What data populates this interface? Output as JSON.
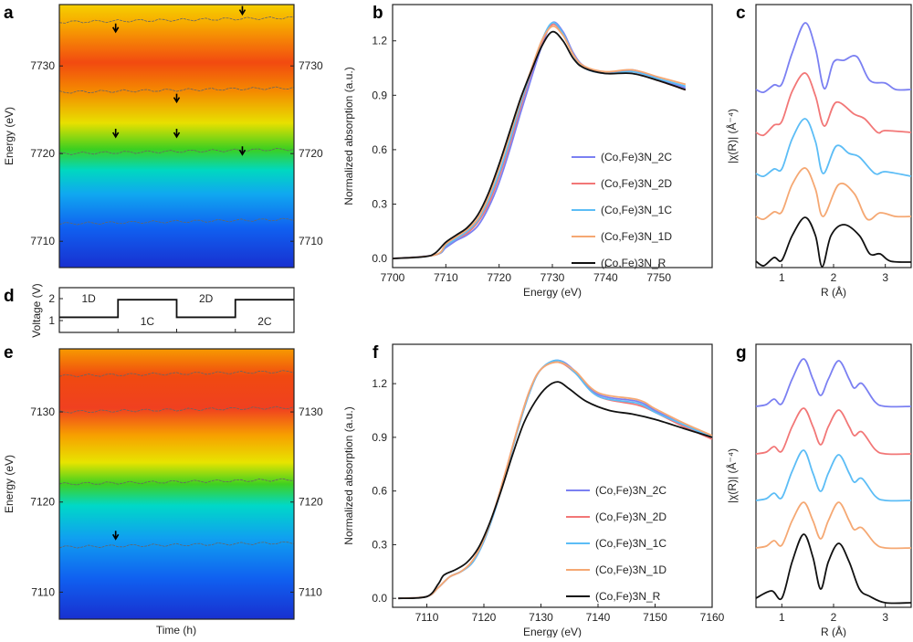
{
  "panel_labels": [
    "a",
    "b",
    "c",
    "d",
    "e",
    "f",
    "g"
  ],
  "colors": {
    "2C": "#7b80f2",
    "2D": "#f27777",
    "1C": "#5cbdf6",
    "1D": "#f5a873",
    "R": "#111111"
  },
  "chart_data": [
    {
      "id": "a",
      "type": "heatmap",
      "ylabel": "Energy (eV)",
      "yticks": [
        "7710",
        "7720",
        "7730"
      ],
      "ylim": [
        7707,
        7737
      ],
      "colormap": "jet",
      "arrows_energy": [
        7734,
        7736,
        7726,
        7722,
        7720,
        7722
      ]
    },
    {
      "id": "b",
      "type": "line",
      "xlabel": "Energy (eV)",
      "ylabel": "Normalized absorption (a.u.)",
      "xlim": [
        7700,
        7760
      ],
      "ylim": [
        -0.05,
        1.4
      ],
      "xticks": [
        "7700",
        "7710",
        "7720",
        "7730",
        "7740",
        "7750"
      ],
      "yticks": [
        "0.0",
        "0.3",
        "0.6",
        "0.9",
        "1.2"
      ],
      "legend": "center-right",
      "series": [
        {
          "name": "(Co,Fe)3N_2C",
          "key": "2C",
          "x": [
            7700,
            7708,
            7710,
            7712,
            7714,
            7716,
            7718,
            7720,
            7722,
            7724,
            7726,
            7728,
            7730,
            7732,
            7734,
            7736,
            7740,
            7745,
            7750,
            7755
          ],
          "y": [
            0,
            0.02,
            0.06,
            0.1,
            0.13,
            0.18,
            0.28,
            0.42,
            0.6,
            0.8,
            0.99,
            1.17,
            1.3,
            1.25,
            1.13,
            1.06,
            1.02,
            1.04,
            0.99,
            0.94
          ]
        },
        {
          "name": "(Co,Fe)3N_2D",
          "key": "2D",
          "x": [
            7700,
            7708,
            7710,
            7712,
            7714,
            7716,
            7718,
            7720,
            7722,
            7724,
            7726,
            7728,
            7730,
            7732,
            7734,
            7736,
            7740,
            7745,
            7750,
            7755
          ],
          "y": [
            0,
            0.02,
            0.07,
            0.11,
            0.14,
            0.2,
            0.3,
            0.45,
            0.63,
            0.83,
            1.02,
            1.19,
            1.29,
            1.24,
            1.12,
            1.05,
            1.02,
            1.03,
            0.98,
            0.93
          ]
        },
        {
          "name": "(Co,Fe)3N_1C",
          "key": "1C",
          "x": [
            7700,
            7708,
            7710,
            7712,
            7714,
            7716,
            7718,
            7720,
            7722,
            7724,
            7726,
            7728,
            7730,
            7732,
            7734,
            7736,
            7740,
            7745,
            7750,
            7755
          ],
          "y": [
            0,
            0.02,
            0.07,
            0.11,
            0.15,
            0.21,
            0.32,
            0.47,
            0.65,
            0.85,
            1.03,
            1.2,
            1.3,
            1.24,
            1.12,
            1.05,
            1.02,
            1.03,
            0.99,
            0.95
          ]
        },
        {
          "name": "(Co,Fe)3N_1D",
          "key": "1D",
          "x": [
            7700,
            7708,
            7710,
            7712,
            7714,
            7716,
            7718,
            7720,
            7722,
            7724,
            7726,
            7728,
            7730,
            7732,
            7734,
            7736,
            7740,
            7745,
            7750,
            7755
          ],
          "y": [
            0,
            0.02,
            0.08,
            0.12,
            0.16,
            0.22,
            0.34,
            0.5,
            0.68,
            0.87,
            1.04,
            1.2,
            1.28,
            1.23,
            1.12,
            1.06,
            1.03,
            1.04,
            1.0,
            0.96
          ]
        },
        {
          "name": "(Co,Fe)3N_R",
          "key": "R",
          "x": [
            7700,
            7706,
            7708,
            7710,
            7712,
            7714,
            7716,
            7718,
            7720,
            7722,
            7724,
            7726,
            7728,
            7730,
            7732,
            7734,
            7736,
            7740,
            7745,
            7750,
            7755
          ],
          "y": [
            0,
            0.01,
            0.03,
            0.09,
            0.13,
            0.17,
            0.24,
            0.36,
            0.52,
            0.7,
            0.88,
            1.03,
            1.17,
            1.25,
            1.2,
            1.1,
            1.05,
            1.02,
            1.02,
            0.98,
            0.93
          ]
        }
      ]
    },
    {
      "id": "c",
      "type": "line",
      "xlabel": "R (Å)",
      "ylabel": "|χ(R)| (Å⁻⁴)",
      "xlim": [
        0.5,
        3.5
      ],
      "ylim": [
        0,
        2.88
      ],
      "xticks": [
        "1",
        "2",
        "3"
      ],
      "series": [
        {
          "key": "2C",
          "offset": 1.95,
          "x": [
            0.5,
            0.65,
            0.85,
            1.0,
            1.2,
            1.45,
            1.65,
            1.82,
            2.0,
            2.2,
            2.45,
            2.7,
            3.0,
            3.2,
            3.5
          ],
          "y": [
            0,
            -0.03,
            0.05,
            0.06,
            0.4,
            0.73,
            0.45,
            0.01,
            0.3,
            0.32,
            0.36,
            0.1,
            0.07,
            0,
            0
          ]
        },
        {
          "key": "2D",
          "offset": 1.48,
          "x": [
            0.5,
            0.65,
            0.85,
            1.0,
            1.2,
            1.45,
            1.65,
            1.82,
            2.05,
            2.4,
            2.6,
            2.85,
            3.0,
            3.5
          ],
          "y": [
            0,
            -0.03,
            0.08,
            0.12,
            0.45,
            0.65,
            0.4,
            0.07,
            0.33,
            0.2,
            0.15,
            0,
            0.02,
            0
          ]
        },
        {
          "key": "1C",
          "offset": 1.03,
          "x": [
            0.5,
            0.65,
            0.85,
            1.0,
            1.2,
            1.45,
            1.65,
            1.8,
            2.05,
            2.3,
            2.5,
            2.8,
            3.0,
            3.5
          ],
          "y": [
            0,
            -0.03,
            0.05,
            0.05,
            0.38,
            0.6,
            0.35,
            0,
            0.3,
            0.22,
            0.18,
            0,
            0.02,
            -0.03
          ]
        },
        {
          "key": "1D",
          "offset": 0.56,
          "x": [
            0.5,
            0.65,
            0.85,
            1.0,
            1.2,
            1.45,
            1.65,
            1.8,
            2.1,
            2.4,
            2.65,
            2.9,
            3.2,
            3.5
          ],
          "y": [
            0,
            -0.03,
            0.05,
            0.05,
            0.35,
            0.53,
            0.3,
            0,
            0.35,
            0.25,
            -0.03,
            0.04,
            0,
            0
          ]
        },
        {
          "key": "R",
          "offset": 0.05,
          "x": [
            0.5,
            0.65,
            0.85,
            1.0,
            1.2,
            1.45,
            1.65,
            1.78,
            1.95,
            2.2,
            2.5,
            2.7,
            2.9,
            3.1,
            3.5
          ],
          "y": [
            0.02,
            -0.03,
            0.06,
            0.03,
            0.3,
            0.5,
            0.3,
            -0.04,
            0.3,
            0.42,
            0.3,
            0.1,
            0.1,
            0.02,
            0.01
          ]
        }
      ]
    },
    {
      "id": "d",
      "type": "line",
      "ylabel": "Voltage (V)",
      "yticks": [
        "1",
        "2"
      ],
      "ylim": [
        0.46,
        2.5
      ],
      "segments": [
        {
          "label": "1D",
          "key": "1D",
          "voltage": 1.15
        },
        {
          "label": "1C",
          "key": "1C",
          "voltage": 1.95
        },
        {
          "label": "2D",
          "key": "2D",
          "voltage": 1.15
        },
        {
          "label": "2C",
          "key": "2C",
          "voltage": 1.95
        }
      ]
    },
    {
      "id": "e",
      "type": "heatmap",
      "xlabel": "Time (h)",
      "ylabel": "Energy (eV)",
      "yticks": [
        "7110",
        "7120",
        "7130"
      ],
      "ylim": [
        7107,
        7137
      ],
      "colormap": "jet",
      "arrows_energy": [
        7116
      ]
    },
    {
      "id": "f",
      "type": "line",
      "xlabel": "Energy (eV)",
      "ylabel": "Normalized absorption (a.u.)",
      "xlim": [
        7104,
        7160
      ],
      "ylim": [
        -0.05,
        1.42
      ],
      "xticks": [
        "7110",
        "7120",
        "7130",
        "7140",
        "7150",
        "7160"
      ],
      "yticks": [
        "0.0",
        "0.3",
        "0.6",
        "0.9",
        "1.2"
      ],
      "legend": "lower-right",
      "series": [
        {
          "name": "(Co,Fe)3N_2C",
          "key": "2C",
          "x": [
            7105,
            7110,
            7112,
            7114,
            7116,
            7118,
            7120,
            7122,
            7124,
            7126,
            7128,
            7130,
            7133,
            7136,
            7140,
            7147,
            7150,
            7155,
            7160
          ],
          "y": [
            0,
            0.01,
            0.06,
            0.12,
            0.15,
            0.2,
            0.32,
            0.5,
            0.72,
            0.95,
            1.15,
            1.28,
            1.33,
            1.27,
            1.14,
            1.1,
            1.05,
            0.97,
            0.9
          ]
        },
        {
          "name": "(Co,Fe)3N_2D",
          "key": "2D",
          "x": [
            7105,
            7110,
            7112,
            7114,
            7116,
            7118,
            7120,
            7122,
            7124,
            7126,
            7128,
            7130,
            7133,
            7136,
            7140,
            7147,
            7150,
            7155,
            7160
          ],
          "y": [
            0,
            0.01,
            0.06,
            0.12,
            0.15,
            0.21,
            0.33,
            0.51,
            0.73,
            0.96,
            1.16,
            1.28,
            1.32,
            1.26,
            1.13,
            1.08,
            1.04,
            0.96,
            0.89
          ]
        },
        {
          "name": "(Co,Fe)3N_1C",
          "key": "1C",
          "x": [
            7105,
            7110,
            7112,
            7114,
            7116,
            7118,
            7120,
            7122,
            7124,
            7126,
            7128,
            7130,
            7133,
            7136,
            7140,
            7147,
            7150,
            7155,
            7160
          ],
          "y": [
            0,
            0.01,
            0.06,
            0.12,
            0.15,
            0.2,
            0.32,
            0.5,
            0.72,
            0.95,
            1.15,
            1.28,
            1.33,
            1.26,
            1.13,
            1.09,
            1.04,
            0.97,
            0.9
          ]
        },
        {
          "name": "(Co,Fe)3N_1D",
          "key": "1D",
          "x": [
            7105,
            7110,
            7112,
            7114,
            7116,
            7118,
            7120,
            7122,
            7124,
            7126,
            7128,
            7130,
            7133,
            7136,
            7140,
            7147,
            7150,
            7155,
            7160
          ],
          "y": [
            0,
            0.01,
            0.06,
            0.12,
            0.15,
            0.21,
            0.33,
            0.51,
            0.73,
            0.96,
            1.16,
            1.28,
            1.32,
            1.27,
            1.15,
            1.11,
            1.06,
            0.98,
            0.91
          ]
        },
        {
          "name": "(Co,Fe)3N_R",
          "key": "R",
          "x": [
            7105,
            7110,
            7112,
            7113,
            7115,
            7117,
            7119,
            7121,
            7123,
            7125,
            7127,
            7129,
            7131,
            7133,
            7135,
            7138,
            7142,
            7146,
            7150,
            7155,
            7160
          ],
          "y": [
            0,
            0.01,
            0.08,
            0.13,
            0.16,
            0.2,
            0.28,
            0.42,
            0.6,
            0.8,
            0.98,
            1.1,
            1.18,
            1.21,
            1.17,
            1.1,
            1.05,
            1.03,
            1.0,
            0.95,
            0.9
          ]
        }
      ]
    },
    {
      "id": "g",
      "type": "line",
      "xlabel": "R (Å)",
      "ylabel": "|χ(R)| (Å⁻⁴)",
      "xlim": [
        0.5,
        3.5
      ],
      "ylim": [
        0,
        2.88
      ],
      "xticks": [
        "1",
        "2",
        "3"
      ],
      "series": [
        {
          "key": "2C",
          "offset": 2.2,
          "x": [
            0.5,
            0.7,
            0.85,
            1.0,
            1.2,
            1.42,
            1.6,
            1.75,
            1.9,
            2.1,
            2.3,
            2.4,
            2.55,
            2.8,
            3.0,
            3.5
          ],
          "y": [
            0,
            0.02,
            0.08,
            0.03,
            0.3,
            0.52,
            0.3,
            0.12,
            0.3,
            0.5,
            0.3,
            0.2,
            0.25,
            0.05,
            0,
            0
          ]
        },
        {
          "key": "2D",
          "offset": 1.68,
          "x": [
            0.5,
            0.7,
            0.85,
            1.0,
            1.2,
            1.42,
            1.6,
            1.75,
            1.9,
            2.1,
            2.3,
            2.4,
            2.55,
            2.8,
            3.0,
            3.5
          ],
          "y": [
            0,
            0.02,
            0.08,
            0.03,
            0.3,
            0.5,
            0.3,
            0.1,
            0.3,
            0.48,
            0.3,
            0.2,
            0.24,
            0.05,
            0,
            0
          ]
        },
        {
          "key": "1C",
          "offset": 1.17,
          "x": [
            0.5,
            0.7,
            0.85,
            1.0,
            1.2,
            1.42,
            1.6,
            1.75,
            1.9,
            2.1,
            2.3,
            2.4,
            2.55,
            2.8,
            3.0,
            3.5
          ],
          "y": [
            0,
            0.02,
            0.08,
            0.03,
            0.32,
            0.55,
            0.3,
            0.1,
            0.3,
            0.5,
            0.3,
            0.2,
            0.24,
            0.05,
            0,
            0
          ]
        },
        {
          "key": "1D",
          "offset": 0.65,
          "x": [
            0.5,
            0.7,
            0.85,
            1.0,
            1.2,
            1.42,
            1.6,
            1.75,
            1.9,
            2.1,
            2.3,
            2.4,
            2.55,
            2.8,
            3.0,
            3.5
          ],
          "y": [
            0,
            0.02,
            0.08,
            0.03,
            0.3,
            0.5,
            0.3,
            0.1,
            0.3,
            0.5,
            0.3,
            0.2,
            0.22,
            0.05,
            0,
            0
          ]
        },
        {
          "key": "R",
          "offset": 0.1,
          "x": [
            0.5,
            0.8,
            1.0,
            1.2,
            1.42,
            1.6,
            1.75,
            1.9,
            2.1,
            2.3,
            2.5,
            2.7,
            3.0,
            3.5
          ],
          "y": [
            0,
            0.08,
            0,
            0.4,
            0.7,
            0.45,
            0.1,
            0.4,
            0.6,
            0.4,
            0.1,
            0.02,
            -0.05,
            -0.05
          ]
        }
      ]
    }
  ]
}
